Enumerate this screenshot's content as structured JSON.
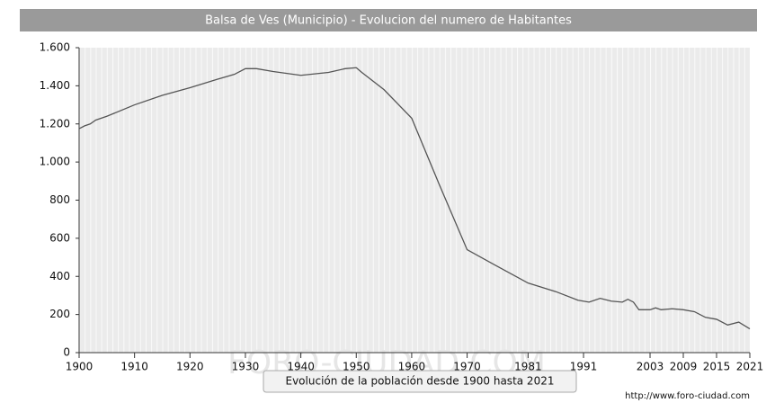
{
  "chart_data": {
    "type": "line",
    "title": "Balsa de Ves (Municipio) - Evolucion del numero de Habitantes",
    "x": [
      1900,
      1901,
      1902,
      1903,
      1905,
      1910,
      1915,
      1920,
      1925,
      1928,
      1930,
      1932,
      1935,
      1940,
      1945,
      1948,
      1950,
      1951,
      1955,
      1960,
      1965,
      1970,
      1975,
      1981,
      1986,
      1990,
      1992,
      1994,
      1996,
      1998,
      1999,
      2000,
      2001,
      2003,
      2004,
      2005,
      2007,
      2009,
      2011,
      2013,
      2015,
      2017,
      2019,
      2021
    ],
    "series": [
      {
        "name": "Habitantes",
        "color": "#555555",
        "values": [
          1175,
          1190,
          1200,
          1220,
          1240,
          1300,
          1350,
          1390,
          1435,
          1460,
          1490,
          1490,
          1475,
          1455,
          1470,
          1490,
          1495,
          1470,
          1380,
          1230,
          880,
          540,
          460,
          365,
          320,
          275,
          265,
          285,
          270,
          265,
          280,
          265,
          225,
          225,
          235,
          225,
          230,
          225,
          215,
          185,
          175,
          145,
          160,
          125
        ]
      }
    ],
    "xlim": [
      1900,
      2021
    ],
    "xticks": [
      1900,
      1910,
      1920,
      1930,
      1940,
      1950,
      1960,
      1970,
      1981,
      1991,
      2003,
      2009,
      2015,
      2021
    ],
    "ylim": [
      0,
      1600
    ],
    "yticks": [
      0,
      200,
      400,
      600,
      800,
      {
        "value": 1000,
        "label": "1.000"
      },
      {
        "value": 1200,
        "label": "1.200"
      },
      {
        "value": 1400,
        "label": "1.400"
      },
      {
        "value": 1600,
        "label": "1.600"
      }
    ],
    "grid": true
  },
  "watermark": "FORO-CIUDAD.COM",
  "tooltip": "Evolución de la población desde 1900 hasta 2021",
  "source": "http://www.foro-ciudad.com"
}
